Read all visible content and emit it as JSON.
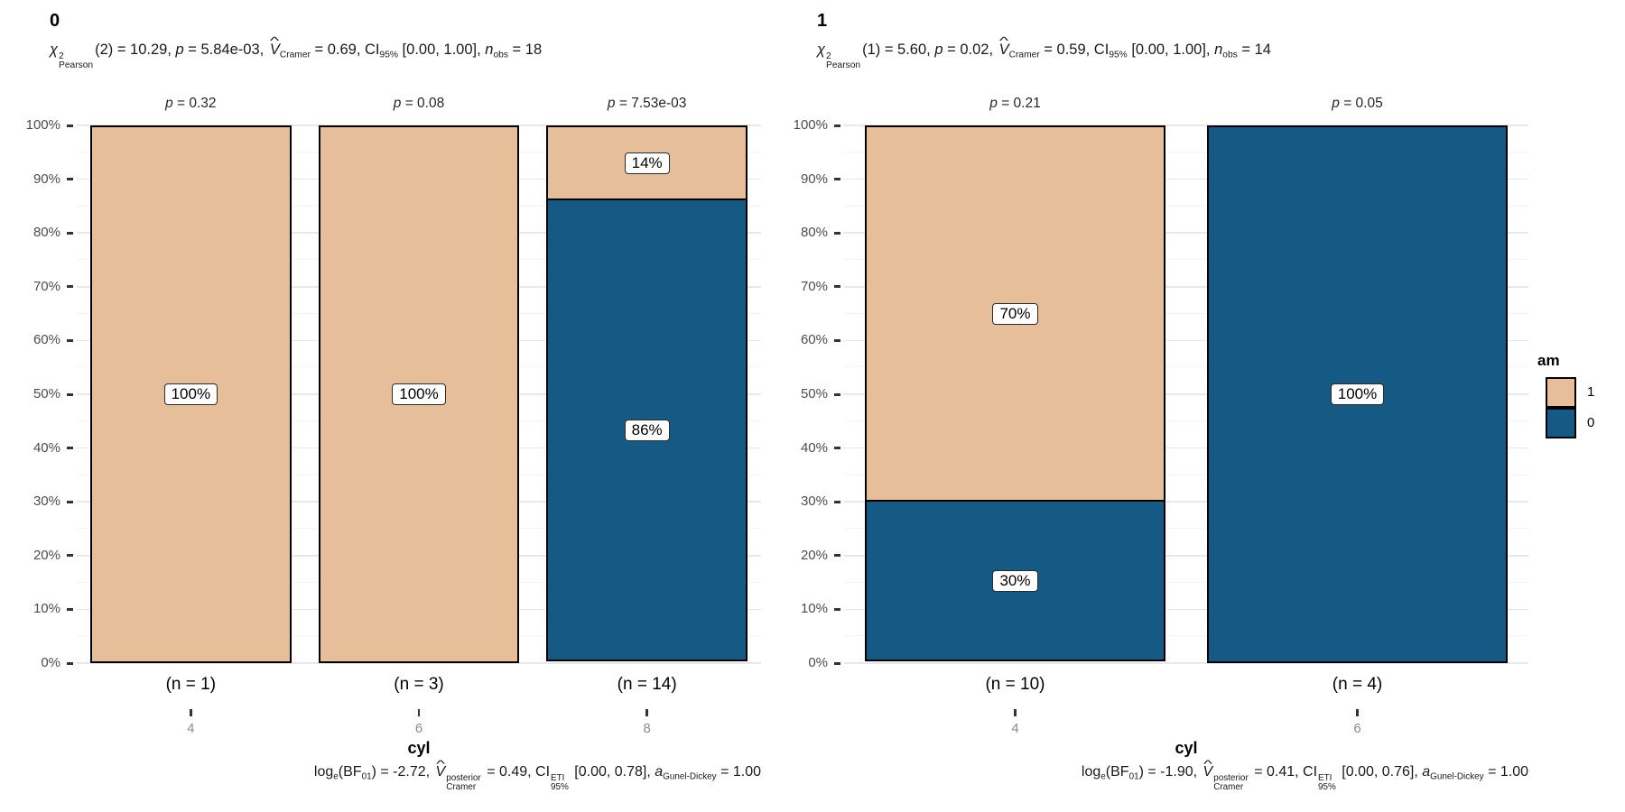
{
  "figure": {
    "background": "#ffffff"
  },
  "colors": {
    "am_1": "#E6BE9A",
    "am_0": "#155A85",
    "bar_border": "#000000",
    "grid_major": "#e8e8e8",
    "grid_minor": "#f4f4f4",
    "axis_text": "#4d4d4d",
    "x_tick_text": "#8c8c8c"
  },
  "y_axis": {
    "tick_labels": [
      "0%",
      "10%",
      "20%",
      "30%",
      "40%",
      "50%",
      "60%",
      "70%",
      "80%",
      "90%",
      "100%"
    ]
  },
  "legend": {
    "title": "am",
    "items": [
      {
        "label": "1",
        "color": "#E6BE9A"
      },
      {
        "label": "0",
        "color": "#155A85"
      }
    ]
  },
  "chart_data": {
    "type": "bar",
    "stacked": true,
    "percent": true,
    "x_variable": "cyl",
    "group_variable": "am",
    "ylim": [
      0,
      100
    ],
    "grid": true,
    "legend_position": "right",
    "panels": [
      {
        "facet_label": "0",
        "x_axis_title": "cyl",
        "categories": [
          "4",
          "6",
          "8"
        ],
        "subtitle_segments": [
          {
            "t": "χ",
            "i": true
          },
          {
            "ss": {
              "sup": "2",
              "sub": "Pearson"
            }
          },
          {
            "t": "(2) = 10.29, "
          },
          {
            "t": "p",
            "i": true
          },
          {
            "t": " = 5.84e-03, "
          },
          {
            "hat": "V",
            "i": true
          },
          {
            "sub": "Cramer"
          },
          {
            "t": " = 0.69, CI"
          },
          {
            "sub": "95%"
          },
          {
            "t": " [0.00, 1.00], "
          },
          {
            "t": "n",
            "i": true
          },
          {
            "sub": "obs"
          },
          {
            "t": " = 18"
          }
        ],
        "caption_segments": [
          {
            "t": "log"
          },
          {
            "sub": "e"
          },
          {
            "t": "(BF"
          },
          {
            "sub": "01"
          },
          {
            "t": ") = -2.72, "
          },
          {
            "hat": "V",
            "i": true
          },
          {
            "ss": {
              "sup": "posterior",
              "sub": "Cramer"
            }
          },
          {
            "t": " = 0.49, CI"
          },
          {
            "ss": {
              "sup": "ETI",
              "sub": "95%"
            }
          },
          {
            "t": " [0.00, 0.78], "
          },
          {
            "t": "a",
            "i": true
          },
          {
            "sub": "Gunel-Dickey"
          },
          {
            "t": " = 1.00"
          }
        ],
        "bars": [
          {
            "x": "4",
            "n_label": "(n = 1)",
            "p_label_segments": [
              {
                "t": "p",
                "i": true
              },
              {
                "t": " = 0.32"
              }
            ],
            "segments": [
              {
                "group": "1",
                "value": 100,
                "label": "100%"
              }
            ]
          },
          {
            "x": "6",
            "n_label": "(n = 3)",
            "p_label_segments": [
              {
                "t": "p",
                "i": true
              },
              {
                "t": " = 0.08"
              }
            ],
            "segments": [
              {
                "group": "1",
                "value": 100,
                "label": "100%"
              }
            ]
          },
          {
            "x": "8",
            "n_label": "(n = 14)",
            "p_label_segments": [
              {
                "t": "p",
                "i": true
              },
              {
                "t": " = 7.53e-03"
              }
            ],
            "segments": [
              {
                "group": "1",
                "value": 14,
                "label": "14%"
              },
              {
                "group": "0",
                "value": 86,
                "label": "86%"
              }
            ]
          }
        ]
      },
      {
        "facet_label": "1",
        "x_axis_title": "cyl",
        "categories": [
          "4",
          "6"
        ],
        "subtitle_segments": [
          {
            "t": "χ",
            "i": true
          },
          {
            "ss": {
              "sup": "2",
              "sub": "Pearson"
            }
          },
          {
            "t": "(1) = 5.60, "
          },
          {
            "t": "p",
            "i": true
          },
          {
            "t": " = 0.02, "
          },
          {
            "hat": "V",
            "i": true
          },
          {
            "sub": "Cramer"
          },
          {
            "t": " = 0.59, CI"
          },
          {
            "sub": "95%"
          },
          {
            "t": " [0.00, 1.00], "
          },
          {
            "t": "n",
            "i": true
          },
          {
            "sub": "obs"
          },
          {
            "t": " = 14"
          }
        ],
        "caption_segments": [
          {
            "t": "log"
          },
          {
            "sub": "e"
          },
          {
            "t": "(BF"
          },
          {
            "sub": "01"
          },
          {
            "t": ") = -1.90, "
          },
          {
            "hat": "V",
            "i": true
          },
          {
            "ss": {
              "sup": "posterior",
              "sub": "Cramer"
            }
          },
          {
            "t": " = 0.41, CI"
          },
          {
            "ss": {
              "sup": "ETI",
              "sub": "95%"
            }
          },
          {
            "t": " [0.00, 0.76], "
          },
          {
            "t": "a",
            "i": true
          },
          {
            "sub": "Gunel-Dickey"
          },
          {
            "t": " = 1.00"
          }
        ],
        "bars": [
          {
            "x": "4",
            "n_label": "(n = 10)",
            "p_label_segments": [
              {
                "t": "p",
                "i": true
              },
              {
                "t": " = 0.21"
              }
            ],
            "segments": [
              {
                "group": "1",
                "value": 70,
                "label": "70%"
              },
              {
                "group": "0",
                "value": 30,
                "label": "30%"
              }
            ]
          },
          {
            "x": "6",
            "n_label": "(n = 4)",
            "p_label_segments": [
              {
                "t": "p",
                "i": true
              },
              {
                "t": " = 0.05"
              }
            ],
            "segments": [
              {
                "group": "0",
                "value": 100,
                "label": "100%"
              }
            ]
          }
        ]
      }
    ]
  }
}
